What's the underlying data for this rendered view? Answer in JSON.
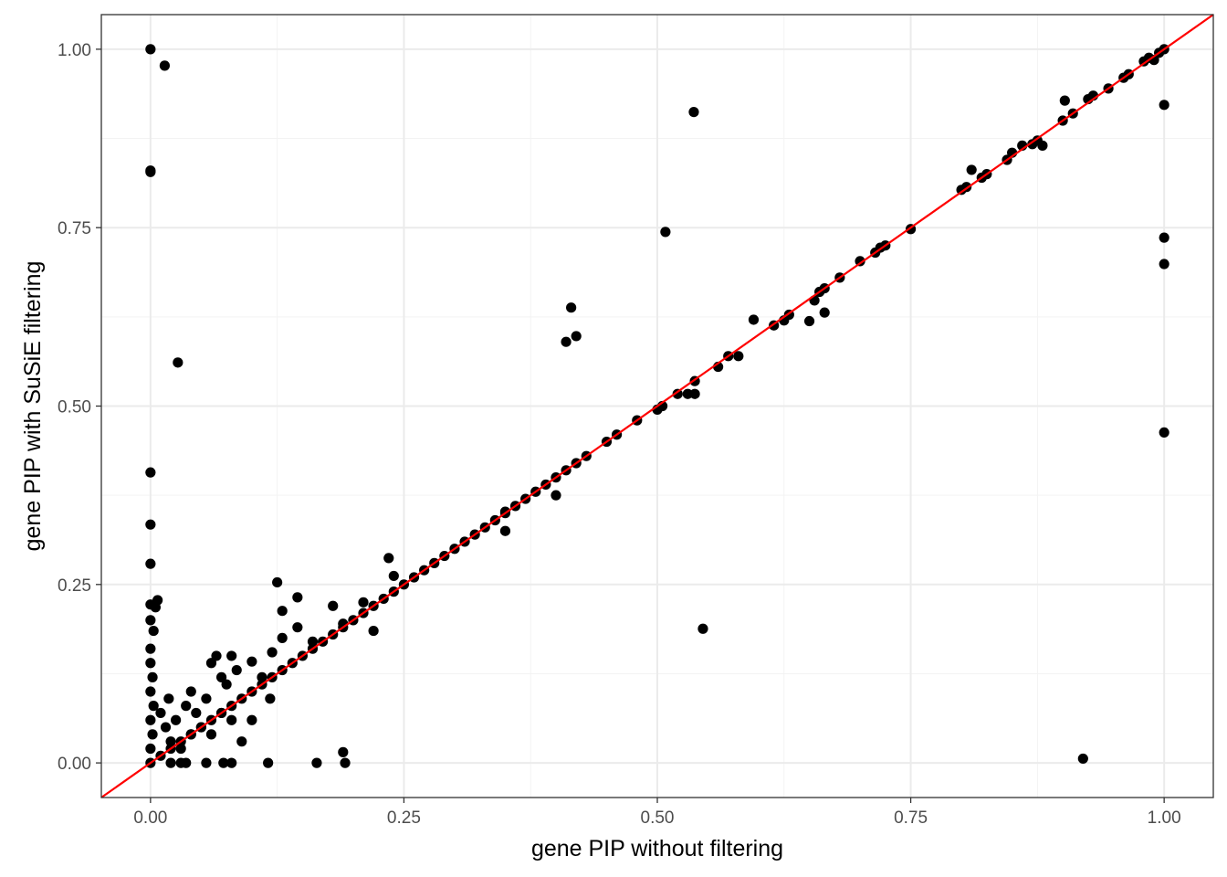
{
  "chart_data": {
    "type": "scatter",
    "xlabel": "gene PIP without filtering",
    "ylabel": "gene PIP with SuSiE filtering",
    "xlim": [
      -0.0485,
      1.0485
    ],
    "ylim": [
      -0.0485,
      1.0485
    ],
    "x_ticks": [
      0.0,
      0.25,
      0.5,
      0.75,
      1.0
    ],
    "y_ticks": [
      0.0,
      0.25,
      0.5,
      0.75,
      1.0
    ],
    "x_tick_labels": [
      "0.00",
      "0.25",
      "0.50",
      "0.75",
      "1.00"
    ],
    "y_tick_labels": [
      "0.00",
      "0.25",
      "0.50",
      "0.75",
      "1.00"
    ],
    "grid": true,
    "reference_line": {
      "slope": 1,
      "intercept": 0,
      "color": "#ff0000"
    },
    "colors": {
      "points": "#000000",
      "panel_border": "#333333",
      "grid_major": "#ebebeb",
      "grid_minor": "#f3f3f3",
      "tick_labels": "#4d4d4d"
    },
    "diagonal_cluster_x": [
      0.0,
      0.01,
      0.02,
      0.03,
      0.04,
      0.05,
      0.06,
      0.07,
      0.08,
      0.09,
      0.1,
      0.11,
      0.12,
      0.13,
      0.14,
      0.15,
      0.16,
      0.17,
      0.18,
      0.19,
      0.2,
      0.21,
      0.22,
      0.23,
      0.24,
      0.25,
      0.26,
      0.27,
      0.28,
      0.29,
      0.3,
      0.31,
      0.32,
      0.33,
      0.34,
      0.35,
      0.36,
      0.37,
      0.38,
      0.39,
      0.4,
      0.41,
      0.42
    ],
    "points": [
      {
        "x": 0.0,
        "y": 1.0
      },
      {
        "x": 0.014,
        "y": 0.977
      },
      {
        "x": 0.0,
        "y": 0.83
      },
      {
        "x": 0.0,
        "y": 0.828
      },
      {
        "x": 0.027,
        "y": 0.561
      },
      {
        "x": 0.0,
        "y": 0.407
      },
      {
        "x": 0.0,
        "y": 0.334
      },
      {
        "x": 0.0,
        "y": 0.279
      },
      {
        "x": 0.007,
        "y": 0.228
      },
      {
        "x": 0.0,
        "y": 0.222
      },
      {
        "x": 0.005,
        "y": 0.218
      },
      {
        "x": 0.0,
        "y": 0.2
      },
      {
        "x": 0.003,
        "y": 0.185
      },
      {
        "x": 0.0,
        "y": 0.16
      },
      {
        "x": 0.0,
        "y": 0.14
      },
      {
        "x": 0.002,
        "y": 0.12
      },
      {
        "x": 0.0,
        "y": 0.1
      },
      {
        "x": 0.003,
        "y": 0.08
      },
      {
        "x": 0.0,
        "y": 0.06
      },
      {
        "x": 0.002,
        "y": 0.04
      },
      {
        "x": 0.0,
        "y": 0.02
      },
      {
        "x": 0.01,
        "y": 0.07
      },
      {
        "x": 0.015,
        "y": 0.05
      },
      {
        "x": 0.02,
        "y": 0.03
      },
      {
        "x": 0.018,
        "y": 0.09
      },
      {
        "x": 0.025,
        "y": 0.06
      },
      {
        "x": 0.03,
        "y": 0.02
      },
      {
        "x": 0.035,
        "y": 0.08
      },
      {
        "x": 0.04,
        "y": 0.1
      },
      {
        "x": 0.045,
        "y": 0.07
      },
      {
        "x": 0.05,
        "y": 0.05
      },
      {
        "x": 0.055,
        "y": 0.09
      },
      {
        "x": 0.06,
        "y": 0.14
      },
      {
        "x": 0.065,
        "y": 0.15
      },
      {
        "x": 0.07,
        "y": 0.12
      },
      {
        "x": 0.075,
        "y": 0.11
      },
      {
        "x": 0.08,
        "y": 0.15
      },
      {
        "x": 0.085,
        "y": 0.13
      },
      {
        "x": 0.1,
        "y": 0.142
      },
      {
        "x": 0.11,
        "y": 0.12
      },
      {
        "x": 0.12,
        "y": 0.155
      },
      {
        "x": 0.125,
        "y": 0.253
      },
      {
        "x": 0.13,
        "y": 0.213
      },
      {
        "x": 0.145,
        "y": 0.232
      },
      {
        "x": 0.145,
        "y": 0.19
      },
      {
        "x": 0.13,
        "y": 0.175
      },
      {
        "x": 0.16,
        "y": 0.17
      },
      {
        "x": 0.18,
        "y": 0.22
      },
      {
        "x": 0.19,
        "y": 0.195
      },
      {
        "x": 0.22,
        "y": 0.185
      },
      {
        "x": 0.235,
        "y": 0.287
      },
      {
        "x": 0.24,
        "y": 0.262
      },
      {
        "x": 0.21,
        "y": 0.225
      },
      {
        "x": 0.04,
        "y": 0.04
      },
      {
        "x": 0.06,
        "y": 0.04
      },
      {
        "x": 0.07,
        "y": 0.07
      },
      {
        "x": 0.08,
        "y": 0.06
      },
      {
        "x": 0.1,
        "y": 0.06
      },
      {
        "x": 0.118,
        "y": 0.09
      },
      {
        "x": 0.09,
        "y": 0.03
      },
      {
        "x": 0.02,
        "y": 0.0
      },
      {
        "x": 0.03,
        "y": 0.0
      },
      {
        "x": 0.035,
        "y": 0.0
      },
      {
        "x": 0.055,
        "y": 0.0
      },
      {
        "x": 0.072,
        "y": 0.0
      },
      {
        "x": 0.08,
        "y": 0.0
      },
      {
        "x": 0.116,
        "y": 0.0
      },
      {
        "x": 0.164,
        "y": 0.0
      },
      {
        "x": 0.19,
        "y": 0.015
      },
      {
        "x": 0.192,
        "y": 0.0
      },
      {
        "x": 0.35,
        "y": 0.352
      },
      {
        "x": 0.35,
        "y": 0.325
      },
      {
        "x": 0.4,
        "y": 0.375
      },
      {
        "x": 0.41,
        "y": 0.59
      },
      {
        "x": 0.415,
        "y": 0.638
      },
      {
        "x": 0.42,
        "y": 0.598
      },
      {
        "x": 0.43,
        "y": 0.43
      },
      {
        "x": 0.45,
        "y": 0.45
      },
      {
        "x": 0.46,
        "y": 0.46
      },
      {
        "x": 0.48,
        "y": 0.48
      },
      {
        "x": 0.5,
        "y": 0.495
      },
      {
        "x": 0.505,
        "y": 0.5
      },
      {
        "x": 0.508,
        "y": 0.744
      },
      {
        "x": 0.52,
        "y": 0.517
      },
      {
        "x": 0.53,
        "y": 0.517
      },
      {
        "x": 0.537,
        "y": 0.517
      },
      {
        "x": 0.537,
        "y": 0.535
      },
      {
        "x": 0.536,
        "y": 0.912
      },
      {
        "x": 0.545,
        "y": 0.188
      },
      {
        "x": 0.56,
        "y": 0.555
      },
      {
        "x": 0.57,
        "y": 0.57
      },
      {
        "x": 0.58,
        "y": 0.57
      },
      {
        "x": 0.595,
        "y": 0.621
      },
      {
        "x": 0.615,
        "y": 0.613
      },
      {
        "x": 0.625,
        "y": 0.62
      },
      {
        "x": 0.63,
        "y": 0.628
      },
      {
        "x": 0.65,
        "y": 0.619
      },
      {
        "x": 0.655,
        "y": 0.648
      },
      {
        "x": 0.66,
        "y": 0.66
      },
      {
        "x": 0.665,
        "y": 0.631
      },
      {
        "x": 0.665,
        "y": 0.665
      },
      {
        "x": 0.68,
        "y": 0.68
      },
      {
        "x": 0.7,
        "y": 0.703
      },
      {
        "x": 0.715,
        "y": 0.715
      },
      {
        "x": 0.72,
        "y": 0.722
      },
      {
        "x": 0.725,
        "y": 0.725
      },
      {
        "x": 0.75,
        "y": 0.748
      },
      {
        "x": 0.8,
        "y": 0.803
      },
      {
        "x": 0.805,
        "y": 0.807
      },
      {
        "x": 0.81,
        "y": 0.831
      },
      {
        "x": 0.82,
        "y": 0.82
      },
      {
        "x": 0.825,
        "y": 0.825
      },
      {
        "x": 0.845,
        "y": 0.845
      },
      {
        "x": 0.85,
        "y": 0.855
      },
      {
        "x": 0.86,
        "y": 0.865
      },
      {
        "x": 0.87,
        "y": 0.867
      },
      {
        "x": 0.875,
        "y": 0.872
      },
      {
        "x": 0.88,
        "y": 0.865
      },
      {
        "x": 0.9,
        "y": 0.9
      },
      {
        "x": 0.902,
        "y": 0.928
      },
      {
        "x": 0.91,
        "y": 0.91
      },
      {
        "x": 0.92,
        "y": 0.006
      },
      {
        "x": 0.925,
        "y": 0.93
      },
      {
        "x": 0.93,
        "y": 0.935
      },
      {
        "x": 0.945,
        "y": 0.945
      },
      {
        "x": 0.96,
        "y": 0.96
      },
      {
        "x": 0.965,
        "y": 0.965
      },
      {
        "x": 0.98,
        "y": 0.983
      },
      {
        "x": 0.985,
        "y": 0.988
      },
      {
        "x": 0.99,
        "y": 0.985
      },
      {
        "x": 0.995,
        "y": 0.995
      },
      {
        "x": 1.0,
        "y": 1.0
      },
      {
        "x": 1.0,
        "y": 0.922
      },
      {
        "x": 1.0,
        "y": 0.736
      },
      {
        "x": 1.0,
        "y": 0.699
      },
      {
        "x": 1.0,
        "y": 0.463
      }
    ]
  }
}
